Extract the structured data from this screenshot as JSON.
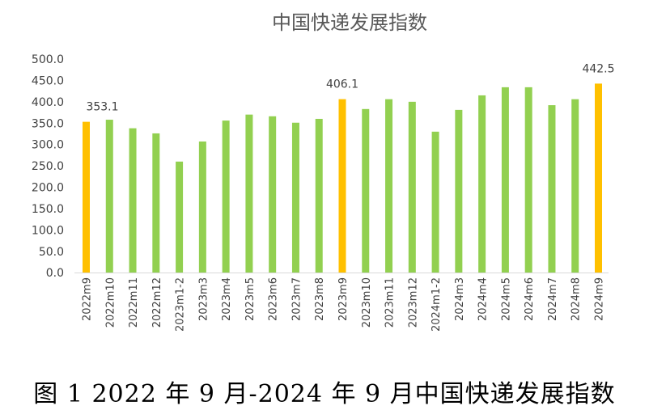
{
  "chart_data": {
    "type": "bar",
    "title": "中国快递发展指数",
    "categories": [
      "2022m9",
      "2022m10",
      "2022m11",
      "2022m12",
      "2023m1-2",
      "2023m3",
      "2023m4",
      "2023m5",
      "2023m6",
      "2023m7",
      "2023m8",
      "2023m9",
      "2023m10",
      "2023m11",
      "2023m12",
      "2024m1-2",
      "2024m3",
      "2024m4",
      "2024m5",
      "2024m6",
      "2024m7",
      "2024m8",
      "2024m9"
    ],
    "values": [
      353.1,
      358,
      338,
      326,
      260,
      307,
      356,
      370,
      366,
      351,
      360,
      406.1,
      383,
      406,
      400,
      330,
      381,
      415,
      434,
      434,
      392,
      406,
      442.5
    ],
    "highlight": [
      0,
      11,
      22
    ],
    "data_labels": {
      "0": "353.1",
      "11": "406.1",
      "22": "442.5"
    },
    "yticks": [
      "0.0",
      "50.0",
      "100.0",
      "150.0",
      "200.0",
      "250.0",
      "300.0",
      "350.0",
      "400.0",
      "450.0",
      "500.0"
    ],
    "ylim": [
      0,
      500
    ],
    "grid": false,
    "colors": {
      "bar": "#92D050",
      "highlight": "#FFC000"
    }
  },
  "caption": "图 1 2022 年 9 月-2024 年 9 月中国快递发展指数"
}
